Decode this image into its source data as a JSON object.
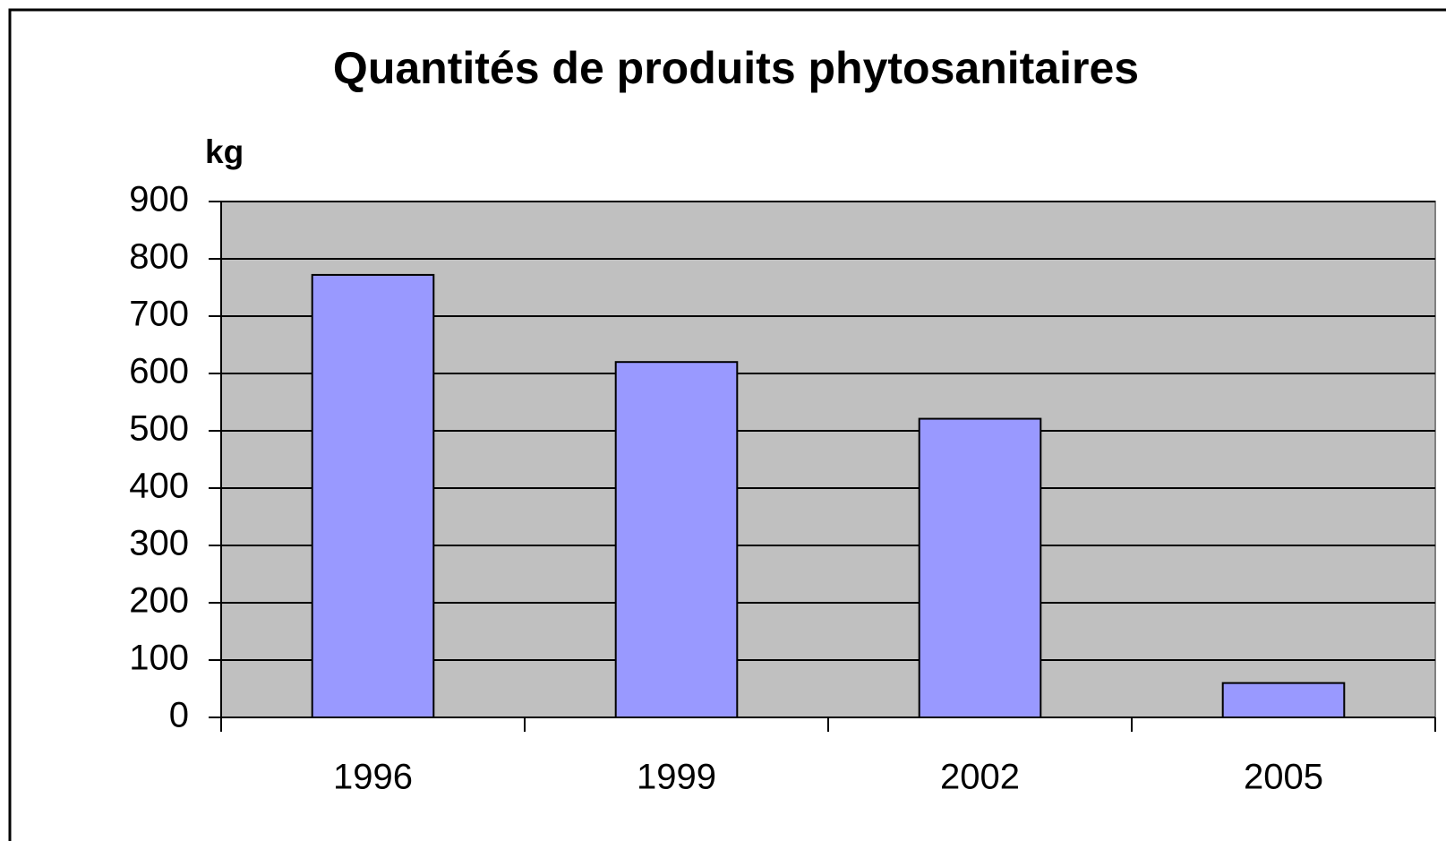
{
  "chart_data": {
    "type": "bar",
    "title": "Quantités de produits phytosanitaires",
    "y_label": "kg",
    "categories": [
      "1996",
      "1999",
      "2002",
      "2005"
    ],
    "values": [
      772,
      620,
      521,
      60
    ],
    "color": "#9999ff",
    "ylim": [
      0,
      900
    ],
    "yticks": [
      0,
      100,
      200,
      300,
      400,
      500,
      600,
      700,
      800,
      900
    ],
    "grid": true
  }
}
